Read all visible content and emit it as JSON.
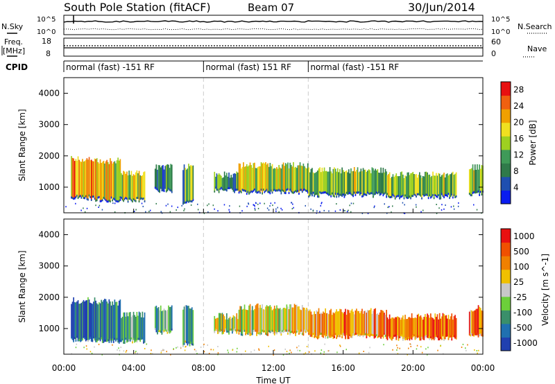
{
  "header": {
    "station": "South Pole Station (fitACF)",
    "beam": "Beam 07",
    "date": "30/Jun/2014"
  },
  "top_panels": {
    "nsky_label": "N.Sky",
    "nsearch_label": "N.Search",
    "freq_label_line1": "Freq.",
    "freq_label_line2": "[MHz]",
    "nave_label": "Nave",
    "cpid_label": "CPID",
    "left_ticks_noise": [
      "10^5",
      "10^0"
    ],
    "right_ticks_noise": [
      "10^5",
      "10^0"
    ],
    "left_ticks_freq": [
      "18",
      "8"
    ],
    "right_ticks_nave": [
      "60",
      "0"
    ],
    "cpid_segments": [
      {
        "label": "normal (fast) -151 RF",
        "start_h": 0,
        "end_h": 8
      },
      {
        "label": "normal (fast) 151 RF",
        "start_h": 8,
        "end_h": 14
      },
      {
        "label": "normal (fast) -151 RF",
        "start_h": 14,
        "end_h": 24
      }
    ]
  },
  "chart_data": [
    {
      "type": "heatmap",
      "title": "",
      "ylabel": "Slant Range [km]",
      "xlabel": "",
      "xlim": [
        0,
        24
      ],
      "ylim": [
        180,
        4500
      ],
      "yticks": [
        1000,
        2000,
        3000,
        4000
      ],
      "colorbar": {
        "label": "Power [dB]",
        "range": [
          0,
          30
        ],
        "ticks": [
          "4",
          "8",
          "12",
          "16",
          "20",
          "24",
          "28"
        ],
        "colors": [
          "#0a1cf0",
          "#1f4fb0",
          "#2f7a4a",
          "#3f9a58",
          "#9ed020",
          "#f0e020",
          "#f0a000",
          "#f06010",
          "#e81010"
        ]
      },
      "echo_regions": [
        {
          "t0": 0.4,
          "t1": 1.8,
          "r0": 650,
          "r1": 1850,
          "level": 0.75
        },
        {
          "t0": 1.8,
          "t1": 3.2,
          "r0": 600,
          "r1": 1800,
          "level": 0.65
        },
        {
          "t0": 3.2,
          "t1": 4.6,
          "r0": 600,
          "r1": 1400,
          "level": 0.55
        },
        {
          "t0": 5.2,
          "t1": 6.2,
          "r0": 900,
          "r1": 1600,
          "level": 0.3
        },
        {
          "t0": 6.8,
          "t1": 7.4,
          "r0": 500,
          "r1": 1600,
          "level": 0.35
        },
        {
          "t0": 8.6,
          "t1": 10.0,
          "r0": 900,
          "r1": 1350,
          "level": 0.35
        },
        {
          "t0": 10.0,
          "t1": 14.0,
          "r0": 850,
          "r1": 1650,
          "level": 0.55
        },
        {
          "t0": 14.0,
          "t1": 18.5,
          "r0": 750,
          "r1": 1500,
          "level": 0.45
        },
        {
          "t0": 18.5,
          "t1": 22.5,
          "r0": 700,
          "r1": 1350,
          "level": 0.45
        },
        {
          "t0": 23.2,
          "t1": 24.0,
          "r0": 800,
          "r1": 1600,
          "level": 0.5
        }
      ]
    },
    {
      "type": "heatmap",
      "title": "",
      "ylabel": "Slant Range [km]",
      "xlabel": "Time UT",
      "xlim": [
        0,
        24
      ],
      "ylim": [
        180,
        4500
      ],
      "yticks": [
        1000,
        2000,
        3000,
        4000
      ],
      "xticks": [
        "00:00",
        "04:00",
        "08:00",
        "12:00",
        "16:00",
        "20:00",
        "00:00"
      ],
      "colorbar": {
        "label": "Velocity [m s^-1]",
        "range": [
          -1000,
          1000
        ],
        "ticks": [
          "1000",
          "500",
          "100",
          "25",
          "-25",
          "-100",
          "-500",
          "-1000"
        ],
        "colors": [
          "#2040b0",
          "#2070b0",
          "#3a8f6a",
          "#6ccf3a",
          "#c8c8c8",
          "#f0c000",
          "#f08000",
          "#f05000",
          "#e81010"
        ]
      },
      "echo_regions": [
        {
          "t0": 0.4,
          "t1": 1.8,
          "r0": 650,
          "r1": 1850,
          "level": 0.15
        },
        {
          "t0": 1.8,
          "t1": 3.2,
          "r0": 600,
          "r1": 1800,
          "level": 0.2
        },
        {
          "t0": 3.2,
          "t1": 4.6,
          "r0": 600,
          "r1": 1400,
          "level": 0.3
        },
        {
          "t0": 5.2,
          "t1": 6.2,
          "r0": 900,
          "r1": 1600,
          "level": 0.3
        },
        {
          "t0": 6.8,
          "t1": 7.4,
          "r0": 500,
          "r1": 1600,
          "level": 0.3
        },
        {
          "t0": 8.6,
          "t1": 10.0,
          "r0": 900,
          "r1": 1350,
          "level": 0.5
        },
        {
          "t0": 10.0,
          "t1": 14.0,
          "r0": 850,
          "r1": 1650,
          "level": 0.55
        },
        {
          "t0": 14.0,
          "t1": 18.5,
          "r0": 750,
          "r1": 1500,
          "level": 0.7
        },
        {
          "t0": 18.5,
          "t1": 22.5,
          "r0": 700,
          "r1": 1350,
          "level": 0.78
        },
        {
          "t0": 23.2,
          "t1": 24.0,
          "r0": 800,
          "r1": 1600,
          "level": 0.75
        }
      ]
    }
  ]
}
